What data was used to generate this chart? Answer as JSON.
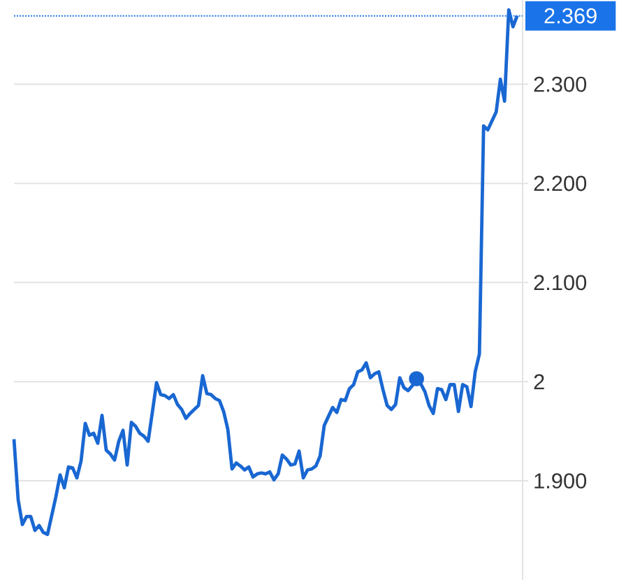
{
  "chart_data": {
    "type": "line",
    "categories": [
      null,
      null,
      null,
      null,
      null,
      null,
      null,
      null,
      null,
      null,
      null,
      null,
      null,
      null,
      null,
      null,
      null,
      null,
      null,
      null,
      null,
      null,
      null,
      null,
      null,
      null,
      null,
      null,
      null,
      null,
      null,
      null,
      null,
      null,
      null,
      null,
      null,
      null,
      null,
      null,
      null,
      null,
      null,
      null,
      null,
      null,
      null,
      null,
      null,
      null,
      null,
      null,
      null,
      null,
      null,
      null,
      null,
      null,
      null,
      null,
      null,
      null,
      null,
      null,
      null,
      null,
      null,
      null,
      null,
      null,
      null,
      null,
      null,
      null,
      null,
      null,
      null,
      null,
      null,
      null,
      null,
      null,
      null,
      null,
      null,
      null,
      null,
      null,
      null,
      null,
      null,
      null,
      null,
      null,
      null,
      null,
      null,
      null,
      null,
      null,
      null,
      null,
      null,
      null,
      null,
      null,
      null,
      null,
      null,
      null,
      null,
      null,
      null,
      null,
      null,
      null,
      null,
      null,
      null,
      null,
      null
    ],
    "series": [
      {
        "color": "#1967d2",
        "values": [
          1.942,
          1.881,
          1.856,
          1.864,
          1.864,
          1.85,
          1.855,
          1.848,
          1.846,
          1.865,
          1.884,
          1.906,
          1.893,
          1.914,
          1.913,
          1.903,
          1.92,
          1.958,
          1.946,
          1.948,
          1.938,
          1.966,
          1.931,
          1.927,
          1.921,
          1.94,
          1.951,
          1.916,
          1.959,
          1.955,
          1.948,
          1.945,
          1.94,
          1.969,
          1.999,
          1.987,
          1.986,
          1.983,
          1.987,
          1.977,
          1.972,
          1.963,
          1.968,
          1.972,
          1.976,
          2.006,
          1.988,
          1.987,
          1.983,
          1.981,
          1.97,
          1.952,
          1.912,
          1.918,
          1.915,
          1.911,
          1.914,
          1.904,
          1.907,
          1.908,
          1.907,
          1.909,
          1.901,
          1.907,
          1.926,
          1.922,
          1.916,
          1.917,
          1.93,
          1.903,
          1.911,
          1.912,
          1.915,
          1.925,
          1.956,
          1.965,
          1.974,
          1.969,
          1.982,
          1.981,
          1.993,
          1.997,
          2.01,
          2.012,
          2.019,
          2.004,
          2.008,
          2.01,
          1.992,
          1.976,
          1.972,
          1.977,
          2.004,
          1.994,
          1.991,
          1.996,
          2.003,
          1.998,
          1.99,
          1.976,
          1.968,
          1.993,
          1.992,
          1.982,
          1.997,
          1.997,
          1.97,
          1.997,
          1.995,
          1.975,
          2.01,
          2.028,
          2.258,
          2.254,
          2.263,
          2.272,
          2.305,
          2.283,
          2.375,
          2.358,
          2.369
        ]
      },
      {
        "type": "scatter",
        "marker": "circle",
        "color": "#1967d2",
        "values": [
          null,
          null,
          null,
          null,
          null,
          null,
          null,
          null,
          null,
          null,
          null,
          null,
          null,
          null,
          null,
          null,
          null,
          null,
          null,
          null,
          null,
          null,
          null,
          null,
          null,
          null,
          null,
          null,
          null,
          null,
          null,
          null,
          null,
          null,
          null,
          null,
          null,
          null,
          null,
          null,
          null,
          null,
          null,
          null,
          null,
          null,
          null,
          null,
          null,
          null,
          null,
          null,
          null,
          null,
          null,
          null,
          null,
          null,
          null,
          null,
          null,
          null,
          null,
          null,
          null,
          null,
          null,
          null,
          null,
          null,
          null,
          null,
          null,
          null,
          null,
          null,
          null,
          null,
          null,
          null,
          null,
          null,
          null,
          null,
          null,
          null,
          null,
          null,
          null,
          null,
          null,
          null,
          null,
          null,
          null,
          null,
          2.003,
          null,
          null,
          null,
          null,
          null,
          null,
          null,
          null,
          null,
          null,
          null,
          null,
          null,
          null,
          null,
          null,
          null,
          null,
          null,
          null,
          null,
          null,
          null,
          null
        ]
      }
    ],
    "ylim": [
      1.8,
      2.385
    ],
    "yticks": [
      {
        "value": 1.9,
        "label": "1.900"
      },
      2,
      {
        "value": 2.1,
        "label": "2.100"
      },
      {
        "value": 2.2,
        "label": "2.200"
      },
      {
        "value": 2.3,
        "label": "2.300"
      }
    ],
    "ref_lines": [
      {
        "axis": "y",
        "value": 2.369,
        "label": "2.369",
        "color": "#1a73e8",
        "line_style": "dotted"
      }
    ],
    "grid": "y"
  }
}
